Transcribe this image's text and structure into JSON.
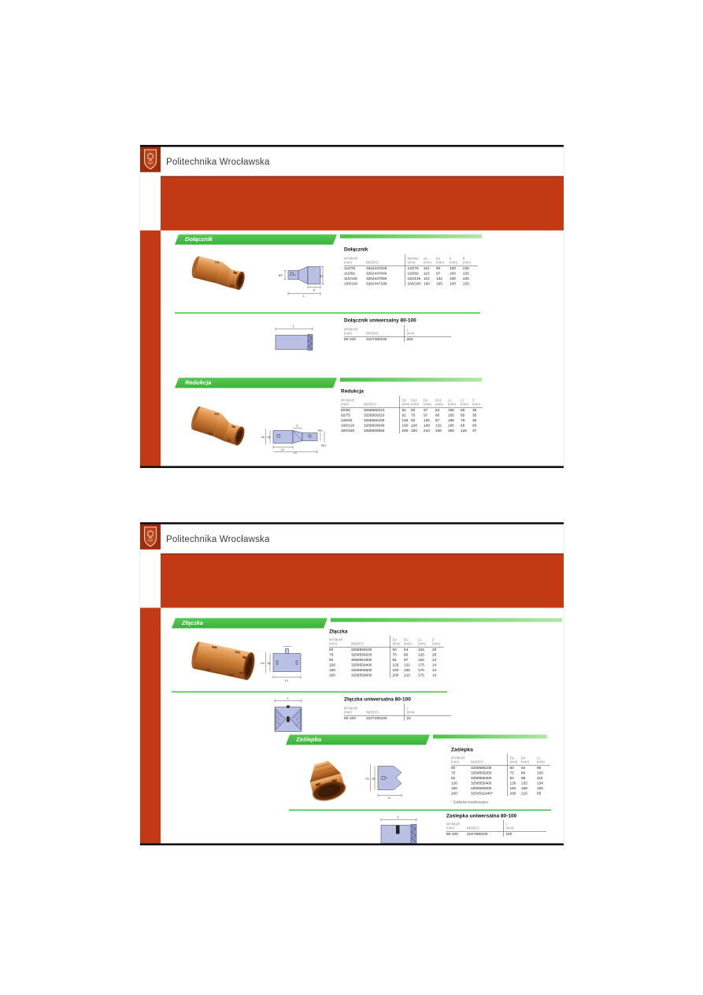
{
  "institution": "Politechnika Wrocławska",
  "colors": {
    "brand_red": "#c23a14",
    "brand_dark_red": "#9e2b10",
    "accent_green": "#46bf44",
    "drawing_fill": "#b9c0e4",
    "photo_orange": "#cd7b39"
  },
  "slide1": {
    "band1": "Dołącznik",
    "band2": "Redukcja",
    "tables": {
      "dolacznik": {
        "title": "Dołącznik",
        "headers": [
          [
            "WYMIAR",
            "(mm)"
          ],
          [
            "INDEKS",
            ""
          ],
          [
            "Wymiar",
            "(mm)"
          ],
          [
            "ø1",
            "(mm)"
          ],
          [
            "ø2",
            "(mm)"
          ],
          [
            "h",
            "(mm)"
          ],
          [
            "b",
            "(mm)"
          ]
        ],
        "rows": [
          [
            "110/75",
            "3262447029",
            "110/75",
            "110",
            "80",
            "100",
            "225"
          ],
          [
            "110/92",
            "3262447040",
            "110/92",
            "110",
            "97",
            "100",
            "225"
          ],
          [
            "110/126",
            "3262447069",
            "110/126",
            "110",
            "132",
            "100",
            "225"
          ],
          [
            "160/160",
            "3262447189",
            "160/160",
            "160",
            "165",
            "100",
            "225"
          ]
        ]
      },
      "dolacznik_uniwersalny": {
        "title": "Dołącznik uniwersalny 80-100",
        "headers": [
          [
            "WYMIAR",
            "(mm)"
          ],
          [
            "INDEKS",
            ""
          ],
          [
            "L",
            "(mm)"
          ]
        ],
        "rows": [
          [
            "80-100",
            "3107480100",
            "262"
          ]
        ]
      },
      "redukcja": {
        "title": "Redukcja",
        "headers": [
          [
            "WYMIAR",
            "(mm)"
          ],
          [
            "INDEKS",
            ""
          ],
          [
            "Dy",
            "(mm)"
          ],
          [
            "Dy1",
            "(mm)"
          ],
          [
            "Du",
            "(mm)"
          ],
          [
            "Du1",
            "(mm)"
          ],
          [
            "L1",
            "(mm)"
          ],
          [
            "L2",
            "(mm)"
          ],
          [
            "Z",
            "(mm)"
          ]
        ],
        "rows": [
          [
            "92/60",
            "3258560210",
            "92",
            "60",
            "97",
            "64",
            "165",
            "65",
            "35"
          ],
          [
            "92/75",
            "3258560320",
            "92",
            "75",
            "97",
            "80",
            "165",
            "65",
            "35"
          ],
          [
            "126/92",
            "3258560430",
            "126",
            "92",
            "132",
            "97",
            "185",
            "75",
            "35"
          ],
          [
            "160/126",
            "3258560540",
            "160",
            "126",
            "168",
            "132",
            "195",
            "65",
            "65"
          ],
          [
            "200/160",
            "3258560650",
            "200",
            "160",
            "210",
            "168",
            "255",
            "125",
            "37"
          ]
        ]
      }
    }
  },
  "slide2": {
    "band1": "Złączka",
    "band2": "Zaślepka",
    "tables": {
      "zlaczka": {
        "title": "Złączka",
        "headers": [
          [
            "WYMIAR",
            "(mm)"
          ],
          [
            "INDEKS",
            ""
          ],
          [
            "Dy",
            "(mm)"
          ],
          [
            "Du",
            "(mm)"
          ],
          [
            "L1",
            "(mm)"
          ],
          [
            "Z",
            "(mm)"
          ]
        ],
        "rows": [
          [
            "60",
            "3258559100",
            "60",
            "64",
            "126",
            "20"
          ],
          [
            "75",
            "3258559200",
            "75",
            "80",
            "126",
            "25"
          ],
          [
            "92",
            "3058551900",
            "92",
            "97",
            "126",
            "14"
          ],
          [
            "126",
            "3258559400",
            "126",
            "132",
            "175",
            "14"
          ],
          [
            "160",
            "3258559500",
            "160",
            "165",
            "175",
            "14"
          ],
          [
            "200",
            "3258559600",
            "200",
            "210",
            "175",
            "14"
          ]
        ]
      },
      "zlaczka_uniwersalna": {
        "title": "Złączka uniwersalna 80-100",
        "headers": [
          [
            "WYMIAR",
            "(mm)"
          ],
          [
            "INDEKS",
            ""
          ],
          [
            "L",
            "(mm)"
          ]
        ],
        "rows": [
          [
            "80-100",
            "3107180100",
            "15"
          ]
        ]
      },
      "zaslepka": {
        "title": "Zaślepka",
        "headers": [
          [
            "WYMIAR",
            "(mm)"
          ],
          [
            "INDEKS",
            ""
          ],
          [
            "Dy",
            "(mm)"
          ],
          [
            "Du",
            "(mm)"
          ],
          [
            "L1",
            "(mm)"
          ]
        ],
        "rows": [
          [
            "60",
            "3258555100",
            "60",
            "64",
            "95"
          ],
          [
            "75",
            "3258555200",
            "75",
            "80",
            "100"
          ],
          [
            "92",
            "3258555300",
            "92",
            "98",
            "115"
          ],
          [
            "126",
            "3258555400",
            "126",
            "132",
            "134"
          ],
          [
            "160",
            "3258555500",
            "160",
            "168",
            "150"
          ],
          [
            "200",
            "3254511040*",
            "200",
            "210",
            "65"
          ]
        ],
        "footnote": "* Zaślepka kanalizacyjna."
      },
      "zaslepka_uniwersalna": {
        "title": "Zaślepka uniwersalna 80-100",
        "headers": [
          [
            "WYMIAR",
            "(mm)"
          ],
          [
            "INDEKS",
            ""
          ],
          [
            "L",
            "(mm)"
          ]
        ],
        "rows": [
          [
            "80-100",
            "3107380100",
            "160"
          ]
        ]
      }
    }
  },
  "dims": {
    "d1": {
      "phi2": "ø2",
      "phi1": "ø1",
      "b": "b",
      "L": "L"
    },
    "d1u": {
      "L": "L"
    },
    "d2": {
      "du": "Du",
      "dy": "Dy",
      "dy1": "Dy1",
      "du1": "Du1",
      "z": "Z",
      "l2": "L2",
      "l1": "L1"
    },
    "d3": {
      "du": "Du",
      "dy": "Dy",
      "l1": "L1"
    },
    "d3u": {
      "L": "L"
    },
    "d4": {
      "du": "Du",
      "dy": "Dy",
      "l1": "L1"
    },
    "d4u": {
      "L": "L"
    }
  }
}
